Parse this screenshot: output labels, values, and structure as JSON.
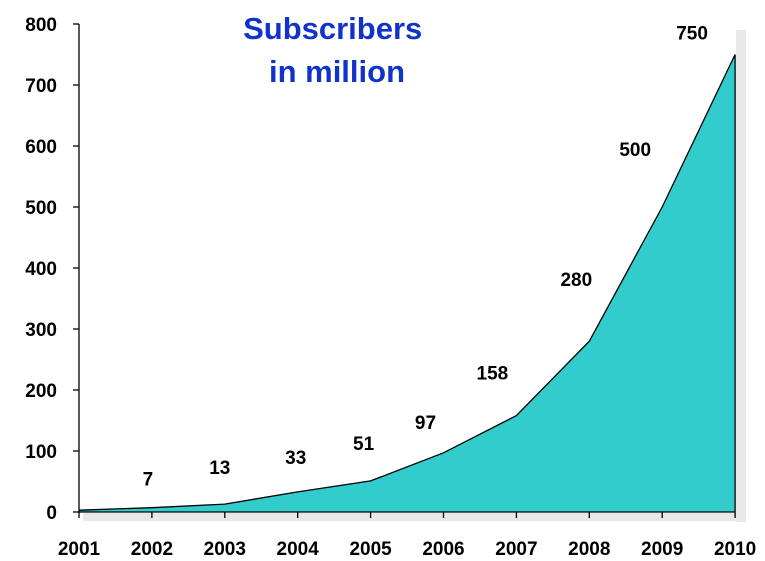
{
  "chart_data": {
    "type": "area",
    "title_lines": [
      "Subscribers",
      "in million"
    ],
    "xlabel": "",
    "ylabel": "",
    "categories": [
      "2001",
      "2002",
      "2003",
      "2004",
      "2005",
      "2006",
      "2007",
      "2008",
      "2009",
      "2010"
    ],
    "series": [
      {
        "values": [
          3,
          7,
          13,
          33,
          51,
          97,
          158,
          280,
          500,
          750
        ]
      }
    ],
    "data_labels": [
      {
        "x": "2002",
        "text": "7"
      },
      {
        "x": "2003",
        "text": "13"
      },
      {
        "x": "2004",
        "text": "33"
      },
      {
        "x": "2005",
        "text": "51"
      },
      {
        "x": "2006",
        "text": "97"
      },
      {
        "x": "2007",
        "text": "158"
      },
      {
        "x": "2008",
        "text": "280"
      },
      {
        "x": "2009",
        "text": "500"
      },
      {
        "x": "2010",
        "text": "750"
      }
    ],
    "ylim": [
      0,
      800
    ],
    "yticks": [
      0,
      100,
      200,
      300,
      400,
      500,
      600,
      700,
      800
    ],
    "grid": false,
    "legend": "none",
    "colors": {
      "fill": "#33CCCC",
      "line": "#000000",
      "title": "#1133CC",
      "shadow": "#E8E8E8"
    }
  }
}
